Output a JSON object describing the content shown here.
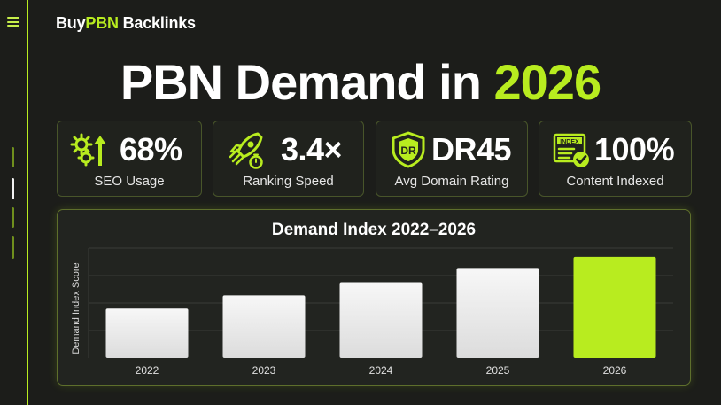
{
  "brand": {
    "prefix": "Buy",
    "accent": "PBN",
    "suffix": " Backlinks"
  },
  "headline": {
    "text": "PBN Demand in ",
    "year": "2026"
  },
  "stats": [
    {
      "icon": "gears-arrow-up-icon",
      "value": "68%",
      "label": "SEO Usage"
    },
    {
      "icon": "rocket-stopwatch-icon",
      "value": "3.4×",
      "label": "Ranking Speed"
    },
    {
      "icon": "dr-shield-icon",
      "icon_text": "DR",
      "value": "DR45",
      "label": "Avg Domain Rating"
    },
    {
      "icon": "index-document-check-icon",
      "icon_text": "INDEX",
      "value": "100%",
      "label": "Content Indexed"
    }
  ],
  "colors": {
    "accent": "#b8ec1f",
    "background": "#1c1d1a",
    "bar": "#f2f2f2"
  },
  "chart_data": {
    "type": "bar",
    "title": "Demand Index 2022–2026",
    "ylabel": "Demand Index Score",
    "xlabel": "",
    "categories": [
      "2022",
      "2023",
      "2024",
      "2025",
      "2026"
    ],
    "values": [
      45,
      57,
      69,
      82,
      92
    ],
    "ylim": [
      0,
      100
    ],
    "grid": true,
    "highlight_category": "2026"
  }
}
